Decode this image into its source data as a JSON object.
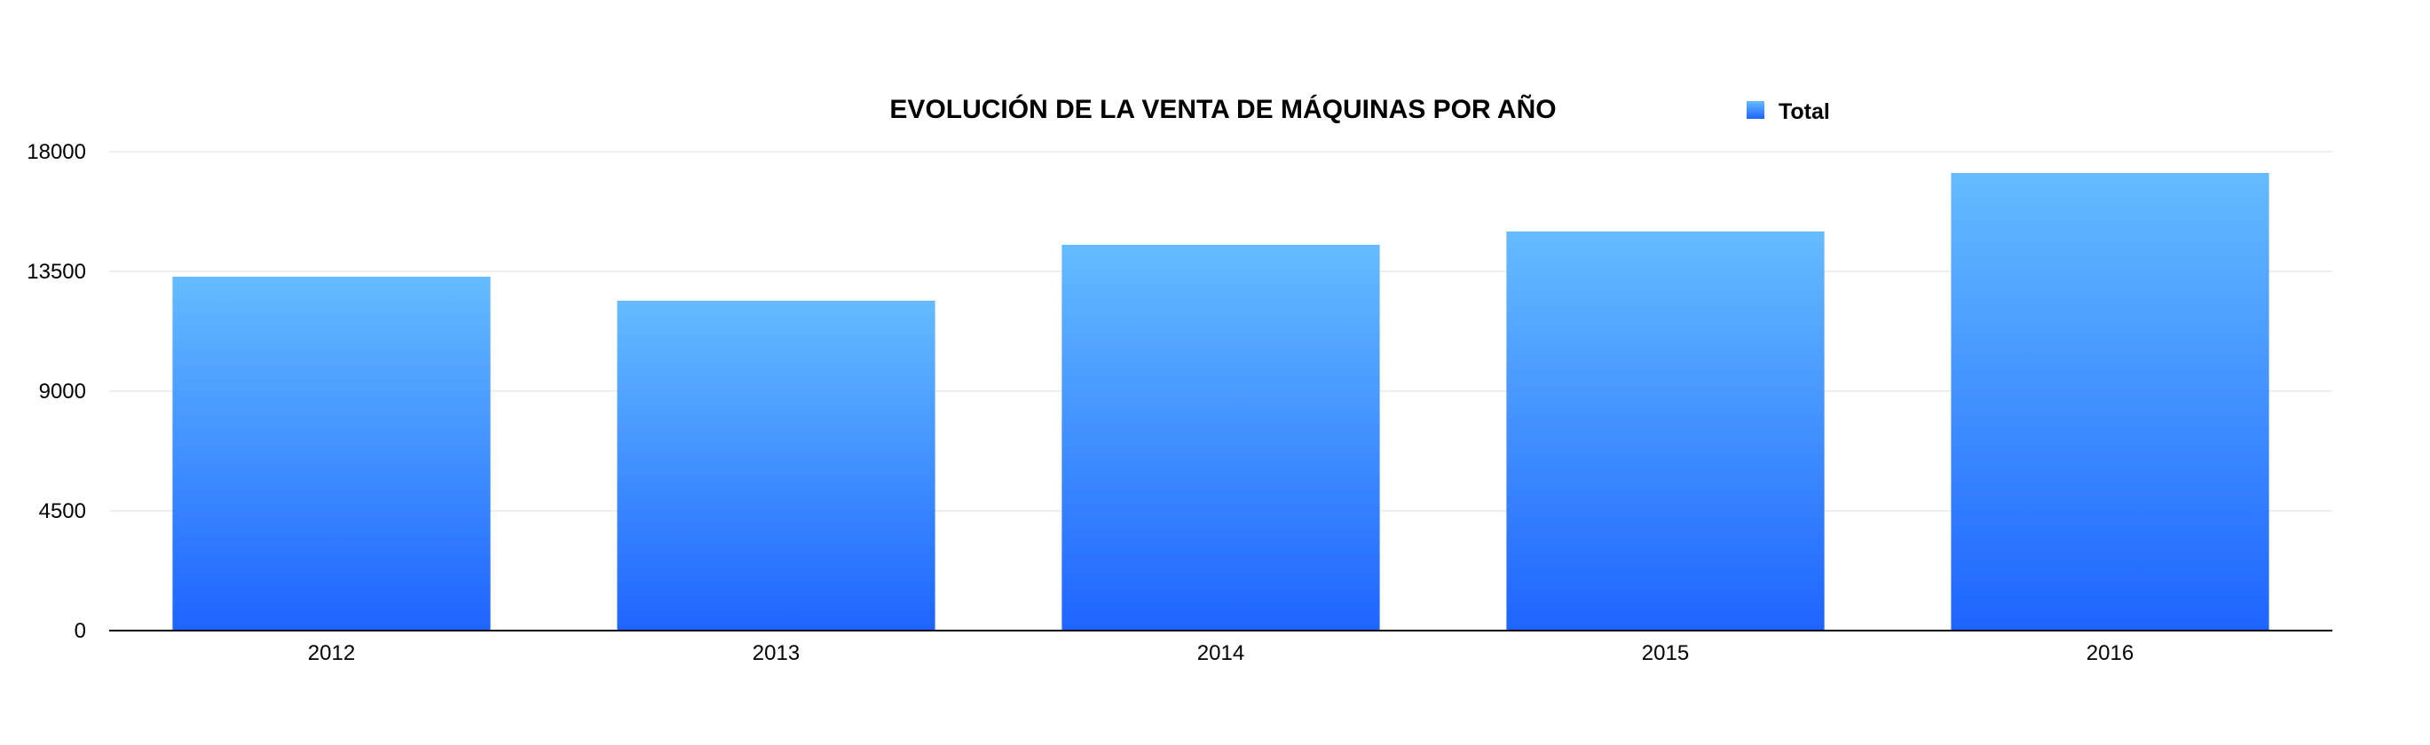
{
  "colors": {
    "bar_top": "#66bbff",
    "bar_bottom": "#1e64ff",
    "grid": "#dcdcdc",
    "axis": "#000000"
  },
  "chart_data": {
    "type": "bar",
    "title": "EVOLUCIÓN DE LA VENTA DE MÁQUINAS POR AÑO",
    "xlabel": "",
    "ylabel": "",
    "categories": [
      "2012",
      "2013",
      "2014",
      "2015",
      "2016"
    ],
    "series": [
      {
        "name": "Total",
        "values": [
          13300,
          12400,
          14500,
          15000,
          17200
        ]
      }
    ],
    "ylim": [
      0,
      18000
    ],
    "yticks": [
      "0",
      "4500",
      "9000",
      "13500",
      "18000"
    ],
    "grid": true,
    "legend": "top-right"
  }
}
